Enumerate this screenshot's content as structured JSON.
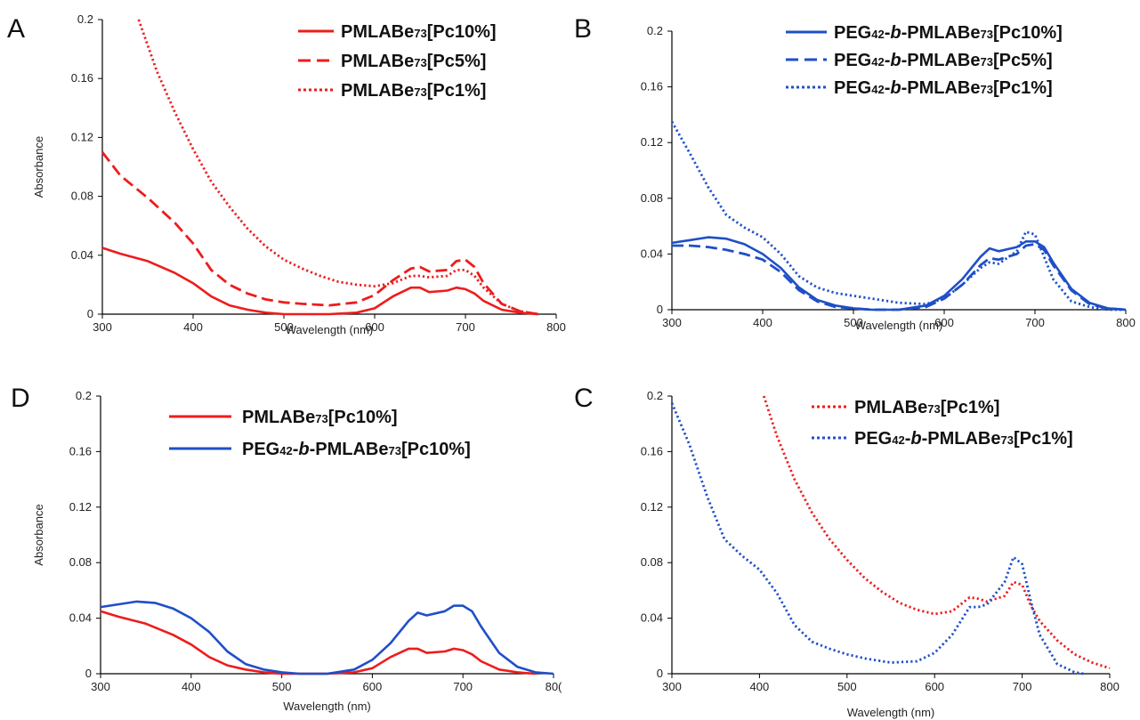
{
  "chart_data": [
    {
      "panel": "A",
      "type": "line",
      "xlabel": "Wavelength (nm)",
      "ylabel": "Absorbance",
      "xlim": [
        300,
        800
      ],
      "ylim": [
        0,
        0.2
      ],
      "x_ticks": [
        "300",
        "400",
        "500",
        "600",
        "700",
        "800"
      ],
      "y_ticks": [
        "0",
        "0.04",
        "0.08",
        "0.12",
        "0.16",
        "0.2"
      ],
      "series": [
        {
          "legend_parts": [
            "PMLABe",
            "73",
            "[Pc10%]"
          ],
          "color": "#ee1c1c",
          "dash": "solid",
          "x": [
            300,
            320,
            350,
            380,
            400,
            420,
            440,
            460,
            480,
            500,
            520,
            550,
            580,
            600,
            620,
            640,
            650,
            660,
            680,
            690,
            700,
            710,
            720,
            740,
            760,
            780
          ],
          "y": [
            0.045,
            0.041,
            0.036,
            0.028,
            0.021,
            0.012,
            0.006,
            0.003,
            0.001,
            0.0,
            0.0,
            0.0,
            0.001,
            0.004,
            0.012,
            0.018,
            0.018,
            0.015,
            0.016,
            0.018,
            0.017,
            0.014,
            0.009,
            0.003,
            0.001,
            0.0
          ]
        },
        {
          "legend_parts": [
            "PMLABe",
            "73",
            "[Pc5%]"
          ],
          "color": "#ee1c1c",
          "dash": "dashed",
          "x": [
            300,
            320,
            350,
            380,
            400,
            420,
            440,
            460,
            480,
            500,
            520,
            550,
            580,
            600,
            620,
            640,
            650,
            660,
            680,
            690,
            700,
            710,
            720,
            740,
            760,
            780
          ],
          "y": [
            0.11,
            0.094,
            0.079,
            0.062,
            0.048,
            0.03,
            0.02,
            0.014,
            0.01,
            0.008,
            0.007,
            0.006,
            0.008,
            0.013,
            0.023,
            0.031,
            0.032,
            0.029,
            0.03,
            0.036,
            0.037,
            0.032,
            0.021,
            0.007,
            0.002,
            0.0
          ]
        },
        {
          "legend_parts": [
            "PMLABe",
            "73",
            "[Pc1%]"
          ],
          "color": "#ee1c1c",
          "dash": "dotted",
          "x": [
            340,
            360,
            380,
            400,
            420,
            440,
            460,
            480,
            500,
            520,
            540,
            560,
            580,
            600,
            620,
            640,
            650,
            660,
            680,
            690,
            700,
            710,
            720,
            740,
            760,
            780
          ],
          "y": [
            0.2,
            0.165,
            0.137,
            0.112,
            0.09,
            0.073,
            0.058,
            0.046,
            0.037,
            0.031,
            0.026,
            0.022,
            0.02,
            0.019,
            0.021,
            0.026,
            0.026,
            0.025,
            0.026,
            0.03,
            0.03,
            0.026,
            0.018,
            0.007,
            0.002,
            0.0
          ]
        }
      ]
    },
    {
      "panel": "B",
      "type": "line",
      "xlabel": "Wavelength (nm)",
      "ylabel": "",
      "xlim": [
        300,
        800
      ],
      "ylim": [
        0,
        0.2
      ],
      "x_ticks": [
        "300",
        "400",
        "500",
        "600",
        "700",
        "800"
      ],
      "y_ticks": [
        "0",
        "0.04",
        "0.08",
        "0.12",
        "0.16",
        "0.2"
      ],
      "series": [
        {
          "legend_parts": [
            "PEG",
            "42",
            "-",
            "b",
            "-PMLABe",
            "73",
            "[Pc10%]"
          ],
          "color": "#1f4fc8",
          "dash": "solid",
          "x": [
            300,
            320,
            340,
            360,
            380,
            400,
            420,
            440,
            460,
            480,
            500,
            520,
            550,
            580,
            600,
            620,
            640,
            650,
            660,
            680,
            690,
            700,
            710,
            720,
            740,
            760,
            780,
            800
          ],
          "y": [
            0.048,
            0.05,
            0.052,
            0.051,
            0.047,
            0.04,
            0.03,
            0.016,
            0.007,
            0.003,
            0.001,
            0.0,
            0.0,
            0.003,
            0.01,
            0.022,
            0.038,
            0.044,
            0.042,
            0.045,
            0.049,
            0.049,
            0.045,
            0.034,
            0.015,
            0.005,
            0.001,
            0.0
          ]
        },
        {
          "legend_parts": [
            "PEG",
            "42",
            "-",
            "b",
            "-PMLABe",
            "73",
            "[Pc5%]"
          ],
          "color": "#1f4fc8",
          "dash": "dashed",
          "x": [
            300,
            320,
            340,
            360,
            380,
            400,
            420,
            440,
            460,
            480,
            500,
            520,
            550,
            580,
            600,
            620,
            640,
            650,
            660,
            680,
            690,
            700,
            710,
            720,
            740,
            760,
            780,
            800
          ],
          "y": [
            0.046,
            0.046,
            0.045,
            0.043,
            0.04,
            0.036,
            0.027,
            0.014,
            0.006,
            0.002,
            0.001,
            0.0,
            0.0,
            0.002,
            0.008,
            0.018,
            0.032,
            0.037,
            0.036,
            0.04,
            0.046,
            0.047,
            0.043,
            0.032,
            0.014,
            0.004,
            0.001,
            0.0
          ]
        },
        {
          "legend_parts": [
            "PEG",
            "42",
            "-",
            "b",
            "-PMLABe",
            "73",
            "[Pc1%]"
          ],
          "color": "#1f4fc8",
          "dash": "dotted",
          "x": [
            300,
            320,
            340,
            360,
            380,
            400,
            420,
            440,
            460,
            480,
            500,
            520,
            550,
            580,
            600,
            620,
            640,
            650,
            660,
            680,
            690,
            700,
            710,
            720,
            740,
            760,
            780,
            800
          ],
          "y": [
            0.135,
            0.112,
            0.088,
            0.068,
            0.059,
            0.052,
            0.04,
            0.024,
            0.016,
            0.012,
            0.01,
            0.008,
            0.005,
            0.004,
            0.008,
            0.018,
            0.03,
            0.034,
            0.033,
            0.042,
            0.056,
            0.054,
            0.038,
            0.022,
            0.006,
            0.002,
            0.0,
            0.0
          ]
        }
      ]
    },
    {
      "panel": "D",
      "type": "line",
      "xlabel": "Wavelength (nm)",
      "ylabel": "Absorbance",
      "xlim": [
        300,
        800
      ],
      "ylim": [
        0,
        0.2
      ],
      "x_ticks": [
        "300",
        "400",
        "500",
        "600",
        "700",
        "80("
      ],
      "y_ticks": [
        "0",
        "0.04",
        "0.08",
        "0.12",
        "0.16",
        "0.2"
      ],
      "series": [
        {
          "legend_parts": [
            "PMLABe",
            "73",
            "[Pc10%]"
          ],
          "color": "#ee1c1c",
          "dash": "solid",
          "x": [
            300,
            320,
            350,
            380,
            400,
            420,
            440,
            460,
            480,
            500,
            520,
            550,
            580,
            600,
            620,
            640,
            650,
            660,
            680,
            690,
            700,
            710,
            720,
            740,
            760,
            780
          ],
          "y": [
            0.045,
            0.041,
            0.036,
            0.028,
            0.021,
            0.012,
            0.006,
            0.003,
            0.001,
            0.0,
            0.0,
            0.0,
            0.001,
            0.004,
            0.012,
            0.018,
            0.018,
            0.015,
            0.016,
            0.018,
            0.017,
            0.014,
            0.009,
            0.003,
            0.001,
            0.0
          ]
        },
        {
          "legend_parts": [
            "PEG",
            "42",
            "-",
            "b",
            "-PMLABe",
            "73",
            "[Pc10%]"
          ],
          "color": "#1f4fc8",
          "dash": "solid",
          "x": [
            300,
            320,
            340,
            360,
            380,
            400,
            420,
            440,
            460,
            480,
            500,
            520,
            550,
            580,
            600,
            620,
            640,
            650,
            660,
            680,
            690,
            700,
            710,
            720,
            740,
            760,
            780,
            800
          ],
          "y": [
            0.048,
            0.05,
            0.052,
            0.051,
            0.047,
            0.04,
            0.03,
            0.016,
            0.007,
            0.003,
            0.001,
            0.0,
            0.0,
            0.003,
            0.01,
            0.022,
            0.038,
            0.044,
            0.042,
            0.045,
            0.049,
            0.049,
            0.045,
            0.034,
            0.015,
            0.005,
            0.001,
            0.0
          ]
        }
      ]
    },
    {
      "panel": "C",
      "type": "line",
      "xlabel": "Wavelength (nm)",
      "ylabel": "",
      "xlim": [
        300,
        800
      ],
      "ylim": [
        0,
        0.2
      ],
      "x_ticks": [
        "300",
        "400",
        "500",
        "600",
        "700",
        "800"
      ],
      "y_ticks": [
        "0",
        "0.04",
        "0.08",
        "0.12",
        "0.16",
        "0.2"
      ],
      "series": [
        {
          "legend_parts": [
            "PMLABe",
            "73",
            "[Pc1%]"
          ],
          "color": "#ee1c1c",
          "dash": "dotted",
          "x": [
            405,
            420,
            440,
            460,
            480,
            500,
            520,
            540,
            560,
            580,
            600,
            620,
            640,
            650,
            660,
            680,
            690,
            700,
            710,
            720,
            740,
            760,
            780,
            800
          ],
          "y": [
            0.2,
            0.171,
            0.14,
            0.116,
            0.097,
            0.082,
            0.069,
            0.059,
            0.051,
            0.046,
            0.043,
            0.045,
            0.055,
            0.054,
            0.052,
            0.056,
            0.066,
            0.064,
            0.049,
            0.038,
            0.024,
            0.014,
            0.008,
            0.004
          ]
        },
        {
          "legend_parts": [
            "PEG",
            "42",
            "-",
            "b",
            "-PMLABe",
            "73",
            "[Pc1%]"
          ],
          "color": "#1f4fc8",
          "dash": "dotted",
          "x": [
            300,
            320,
            340,
            360,
            380,
            400,
            420,
            440,
            460,
            480,
            500,
            520,
            550,
            580,
            600,
            620,
            640,
            650,
            660,
            680,
            690,
            700,
            710,
            720,
            740,
            760,
            770
          ],
          "y": [
            0.195,
            0.165,
            0.128,
            0.097,
            0.085,
            0.075,
            0.058,
            0.035,
            0.023,
            0.018,
            0.014,
            0.011,
            0.008,
            0.009,
            0.015,
            0.028,
            0.048,
            0.048,
            0.05,
            0.066,
            0.084,
            0.079,
            0.052,
            0.028,
            0.007,
            0.001,
            0.0
          ]
        }
      ]
    }
  ],
  "panel_letters": [
    "A",
    "B",
    "D",
    "C"
  ]
}
